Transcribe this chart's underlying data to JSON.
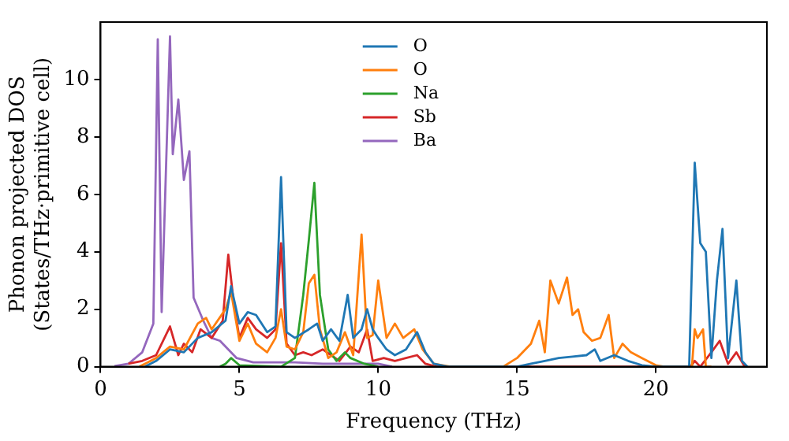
{
  "chart_data": {
    "type": "line",
    "xlabel": "Frequency (THz)",
    "ylabel": "Phonon projected DOS\n(States/THz·primitive cell)",
    "xlim": [
      0,
      24
    ],
    "ylim": [
      0,
      12
    ],
    "xticks": [
      0,
      5,
      10,
      15,
      20
    ],
    "yticks": [
      0,
      2,
      4,
      6,
      8,
      10
    ],
    "grid": false,
    "legend": "top",
    "marker": "none",
    "line_style": "solid",
    "series": [
      {
        "name": "O",
        "color": "#1f77b4",
        "x": [
          1.6,
          2,
          2.5,
          3,
          3.5,
          4,
          4.5,
          4.7,
          5,
          5.3,
          5.6,
          6,
          6.3,
          6.5,
          6.7,
          7,
          7.5,
          7.8,
          8,
          8.3,
          8.6,
          8.9,
          9.1,
          9.4,
          9.6,
          9.8,
          10,
          10.3,
          10.6,
          11,
          11.4,
          11.7,
          12,
          12.5,
          15,
          15.5,
          16,
          16.5,
          17,
          17.5,
          17.8,
          18,
          18.5,
          19,
          19.5,
          20,
          21.2,
          21.4,
          21.6,
          21.8,
          22,
          22.2,
          22.4,
          22.6,
          22.9,
          23.1,
          23.3
        ],
        "values": [
          0,
          0.2,
          0.6,
          0.5,
          1.0,
          1.2,
          1.6,
          2.8,
          1.5,
          1.9,
          1.8,
          1.2,
          1.4,
          6.6,
          1.2,
          1.0,
          1.3,
          1.5,
          0.9,
          1.3,
          0.9,
          2.5,
          1.0,
          1.3,
          2.0,
          1.3,
          1.0,
          0.6,
          0.4,
          0.6,
          1.2,
          0.5,
          0.1,
          0,
          0,
          0.1,
          0.2,
          0.3,
          0.35,
          0.4,
          0.6,
          0.2,
          0.4,
          0.2,
          0.05,
          0,
          0,
          7.1,
          4.3,
          4.0,
          0.3,
          3.0,
          4.8,
          0.3,
          3.0,
          0.2,
          0
        ]
      },
      {
        "name": "O",
        "color": "#ff7f0e",
        "x": [
          1.4,
          2,
          2.5,
          3,
          3.5,
          3.8,
          4,
          4.5,
          4.7,
          5,
          5.3,
          5.6,
          6,
          6.3,
          6.5,
          6.7,
          7,
          7.3,
          7.5,
          7.7,
          7.9,
          8.2,
          8.5,
          8.8,
          9.1,
          9.4,
          9.6,
          9.8,
          10,
          10.3,
          10.6,
          10.9,
          11.3,
          11.6,
          12,
          12.6,
          14.5,
          15,
          15.5,
          15.8,
          16,
          16.2,
          16.5,
          16.8,
          17,
          17.2,
          17.4,
          17.7,
          18,
          18.3,
          18.5,
          18.8,
          19.1,
          19.5,
          20,
          20.3,
          21.3,
          21.4,
          21.5,
          21.7,
          21.8,
          22
        ],
        "values": [
          0,
          0.3,
          0.7,
          0.6,
          1.5,
          1.7,
          1.3,
          2.0,
          2.6,
          0.9,
          1.5,
          0.8,
          0.5,
          1.0,
          2.0,
          0.7,
          0.6,
          1.2,
          2.9,
          3.2,
          1.3,
          0.3,
          0.5,
          1.2,
          0.4,
          4.6,
          1.0,
          1.1,
          3.0,
          1.0,
          1.5,
          1.0,
          1.3,
          0.6,
          0.1,
          0,
          0,
          0.3,
          0.8,
          1.6,
          0.5,
          3.0,
          2.2,
          3.1,
          1.8,
          2.0,
          1.2,
          0.9,
          1.0,
          1.8,
          0.3,
          0.8,
          0.5,
          0.3,
          0.05,
          0,
          0,
          1.3,
          1.0,
          1.3,
          0,
          0
        ]
      },
      {
        "name": "Na",
        "color": "#2ca02c",
        "x": [
          4.3,
          4.5,
          4.7,
          5,
          6.5,
          7,
          7.3,
          7.5,
          7.7,
          7.9,
          8.2,
          8.5,
          8.8,
          9,
          9.5,
          10
        ],
        "values": [
          0,
          0.1,
          0.3,
          0.05,
          0,
          0.3,
          2.5,
          4.4,
          6.4,
          2.5,
          0.6,
          0.2,
          0.5,
          0.3,
          0.1,
          0
        ]
      },
      {
        "name": "Sb",
        "color": "#d62728",
        "x": [
          1,
          1.5,
          2,
          2.5,
          2.8,
          3,
          3.3,
          3.6,
          4,
          4.4,
          4.6,
          4.8,
          5,
          5.3,
          5.6,
          6,
          6.3,
          6.5,
          6.7,
          7,
          7.3,
          7.6,
          8,
          8.3,
          8.6,
          9,
          9.3,
          9.6,
          9.8,
          10.2,
          10.6,
          11,
          11.4,
          11.7,
          12.1,
          21.25,
          21.4,
          21.6,
          22,
          22.3,
          22.6,
          22.9,
          23.2
        ],
        "values": [
          0.1,
          0.2,
          0.4,
          1.4,
          0.4,
          0.8,
          0.5,
          1.3,
          1.0,
          1.6,
          3.9,
          2.2,
          1.0,
          1.7,
          1.3,
          1.0,
          1.3,
          4.3,
          0.8,
          0.4,
          0.5,
          0.4,
          0.6,
          0.4,
          0.2,
          0.7,
          0.5,
          1.3,
          0.2,
          0.3,
          0.2,
          0.3,
          0.4,
          0.1,
          0,
          0,
          0.2,
          0,
          0.5,
          0.9,
          0.1,
          0.5,
          0
        ]
      },
      {
        "name": "Ba",
        "color": "#9467bd",
        "x": [
          0.5,
          1,
          1.5,
          1.9,
          2.06,
          2.2,
          2.5,
          2.6,
          2.8,
          3.0,
          3.2,
          3.35,
          3.7,
          4.0,
          4.3,
          4.9,
          5.5,
          7,
          8,
          10,
          10.5
        ],
        "values": [
          0.02,
          0.1,
          0.5,
          1.5,
          11.4,
          1.9,
          11.5,
          7.4,
          9.3,
          6.5,
          7.5,
          2.4,
          1.6,
          1.0,
          0.9,
          0.3,
          0.15,
          0.15,
          0.1,
          0.1,
          0
        ]
      }
    ]
  }
}
